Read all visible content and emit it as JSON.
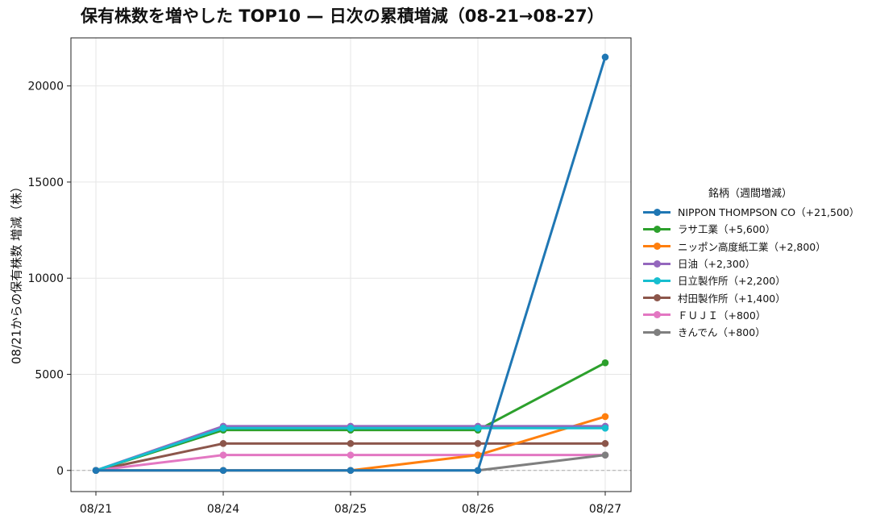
{
  "chart_data": {
    "type": "line",
    "title": "保有株数を増やした TOP10 — 日次の累積増減（08-21→08-27）",
    "xlabel": "",
    "ylabel": "08/21からの保有株数 増減（株）",
    "x": [
      "08/21",
      "08/24",
      "08/25",
      "08/26",
      "08/27"
    ],
    "ylim": [
      -1100,
      22500
    ],
    "yticks": [
      0,
      5000,
      10000,
      15000,
      20000
    ],
    "grid": true,
    "zero_line": true,
    "legend_title": "銘柄（週間増減）",
    "legend_position": "right",
    "series": [
      {
        "name": "村田製作所（+1,400）",
        "color": "#8c564b",
        "values": [
          0,
          1400,
          1400,
          1400,
          1400
        ]
      },
      {
        "name": "ＦＵＪＩ（+800）",
        "color": "#e377c2",
        "values": [
          0,
          800,
          800,
          800,
          800
        ]
      },
      {
        "name": "ラサ工業（+5,600）",
        "color": "#2ca02c",
        "values": [
          0,
          2100,
          2100,
          2100,
          5600
        ]
      },
      {
        "name": "ニッポン高度紙工業（+2,800）",
        "color": "#ff7f0e",
        "values": [
          0,
          0,
          0,
          800,
          2800
        ]
      },
      {
        "name": "日油（+2,300）",
        "color": "#9467bd",
        "values": [
          0,
          2300,
          2300,
          2300,
          2300
        ]
      },
      {
        "name": "日立製作所（+2,200）",
        "color": "#17becf",
        "values": [
          0,
          2200,
          2200,
          2200,
          2200
        ]
      },
      {
        "name": "きんでん（+800）",
        "color": "#7f7f7f",
        "values": [
          0,
          0,
          0,
          0,
          800
        ]
      },
      {
        "name": "NIPPON THOMPSON CO（+21,500）",
        "color": "#1f77b4",
        "values": [
          0,
          0,
          0,
          0,
          21500
        ]
      }
    ],
    "legend_order": [
      "NIPPON THOMPSON CO（+21,500）",
      "ラサ工業（+5,600）",
      "ニッポン高度紙工業（+2,800）",
      "日油（+2,300）",
      "日立製作所（+2,200）",
      "村田製作所（+1,400）",
      "ＦＵＪＩ（+800）",
      "きんでん（+800）"
    ]
  }
}
